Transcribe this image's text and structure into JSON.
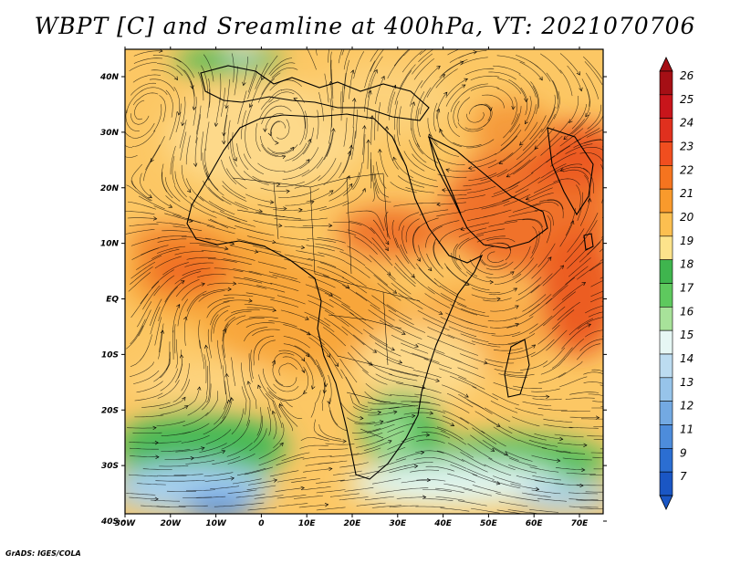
{
  "title": "WBPT [C] and Sreamline at 400hPa, VT: 2021070706",
  "credit": "GrADS: IGES/COLA",
  "x_ticks": [
    "30W",
    "20W",
    "10W",
    "0",
    "10E",
    "20E",
    "30E",
    "40E",
    "50E",
    "60E",
    "70E"
  ],
  "y_ticks": [
    "40N",
    "30N",
    "20N",
    "10N",
    "EQ",
    "10S",
    "20S",
    "30S",
    "40S"
  ],
  "colorbar": {
    "labels": [
      "26",
      "25",
      "24",
      "23",
      "22",
      "21",
      "20",
      "19",
      "18",
      "17",
      "16",
      "15",
      "14",
      "13",
      "12",
      "11",
      "9",
      "7"
    ],
    "colors": [
      "#a50f15",
      "#c8151b",
      "#e0301e",
      "#f04e1f",
      "#f5741f",
      "#f99a2c",
      "#fcbf50",
      "#fde38b",
      "#3fb54e",
      "#5ec95e",
      "#a8e29a",
      "#e6f7f4",
      "#bcdcf0",
      "#97c4ea",
      "#73a9e2",
      "#4d8cdb",
      "#2b6ed2",
      "#1a56c4"
    ]
  },
  "chart_data": {
    "type": "map",
    "variable": "WBPT [C]",
    "level": "400hPa",
    "valid_time": "2021070706",
    "lon_range": [
      -30,
      75
    ],
    "lat_range": [
      -40,
      45
    ],
    "colorbar_levels": [
      7,
      9,
      11,
      12,
      13,
      14,
      15,
      16,
      17,
      18,
      19,
      20,
      21,
      22,
      23,
      24,
      25,
      26
    ]
  }
}
